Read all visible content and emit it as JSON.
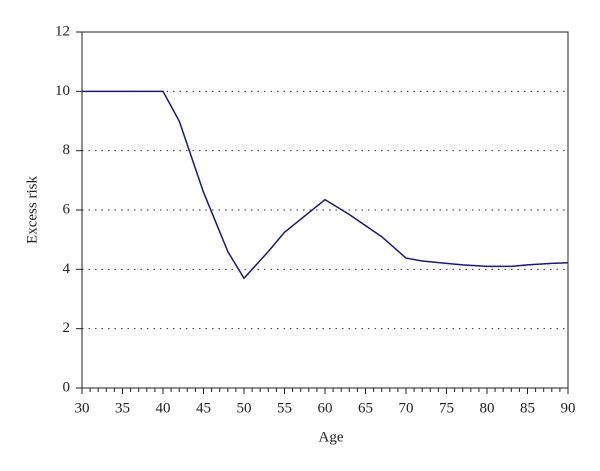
{
  "chart_data": {
    "type": "line",
    "x_label": "Age",
    "y_label": "Excess risk",
    "series": [
      {
        "name": "Excess risk",
        "color": "#1a1a7a",
        "x": [
          30,
          40,
          42,
          45,
          48,
          50,
          53,
          55,
          60,
          63,
          67,
          70,
          72,
          75,
          77,
          80,
          83,
          85,
          88,
          90
        ],
        "values": [
          10,
          10,
          9,
          6.6,
          4.6,
          3.7,
          4.6,
          5.25,
          6.35,
          5.85,
          5.1,
          4.38,
          4.28,
          4.2,
          4.15,
          4.1,
          4.1,
          4.15,
          4.2,
          4.22
        ]
      }
    ],
    "xlim": [
      30,
      90
    ],
    "xticks": [
      30,
      35,
      40,
      45,
      50,
      55,
      60,
      65,
      70,
      75,
      80,
      85,
      90
    ],
    "ylim": [
      0,
      12
    ],
    "yticks": [
      0,
      2,
      4,
      6,
      8,
      10,
      12
    ],
    "grid": true
  }
}
